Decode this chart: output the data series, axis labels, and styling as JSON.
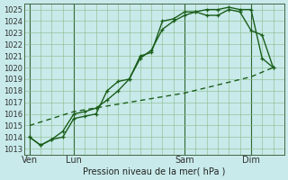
{
  "title": "Pression niveau de la mer( hPa )",
  "bg_color": "#c8eaea",
  "plot_bg_color": "#c8eaea",
  "grid_color": "#88bb88",
  "line_color": "#1a5e1a",
  "ylim": [
    1012.5,
    1025.5
  ],
  "yticks": [
    1013,
    1014,
    1015,
    1016,
    1017,
    1018,
    1019,
    1020,
    1021,
    1022,
    1023,
    1024,
    1025
  ],
  "day_labels": [
    "Ven",
    "Lun",
    "Sam",
    "Dim"
  ],
  "day_positions": [
    0,
    4,
    14,
    20
  ],
  "xlim": [
    -0.5,
    23
  ],
  "line1_x": [
    0,
    1,
    2,
    3,
    4,
    5,
    6,
    7,
    8,
    9,
    10,
    11,
    12,
    13,
    14,
    15,
    16,
    17,
    18,
    19,
    20,
    21,
    22
  ],
  "line1_y": [
    1014.0,
    1013.3,
    1013.8,
    1014.0,
    1015.6,
    1015.8,
    1016.0,
    1018.0,
    1018.8,
    1019.0,
    1021.0,
    1021.3,
    1024.0,
    1024.2,
    1024.8,
    1024.8,
    1024.5,
    1024.5,
    1025.0,
    1024.8,
    1023.2,
    1022.8,
    1020.0
  ],
  "line2_x": [
    0,
    1,
    2,
    3,
    4,
    5,
    6,
    7,
    8,
    9,
    10,
    11,
    12,
    13,
    14,
    15,
    16,
    17,
    18,
    19,
    20,
    21,
    22
  ],
  "line2_y": [
    1014.0,
    1013.3,
    1013.8,
    1014.5,
    1016.0,
    1016.2,
    1016.5,
    1017.2,
    1018.0,
    1019.0,
    1020.8,
    1021.5,
    1023.3,
    1024.0,
    1024.5,
    1024.8,
    1025.0,
    1025.0,
    1025.2,
    1025.0,
    1025.0,
    1020.8,
    1020.0
  ],
  "line3_x": [
    0,
    4,
    14,
    20,
    22
  ],
  "line3_y": [
    1015.0,
    1016.2,
    1017.8,
    1019.2,
    1020.0
  ],
  "vline_positions": [
    0,
    4,
    14,
    20
  ]
}
